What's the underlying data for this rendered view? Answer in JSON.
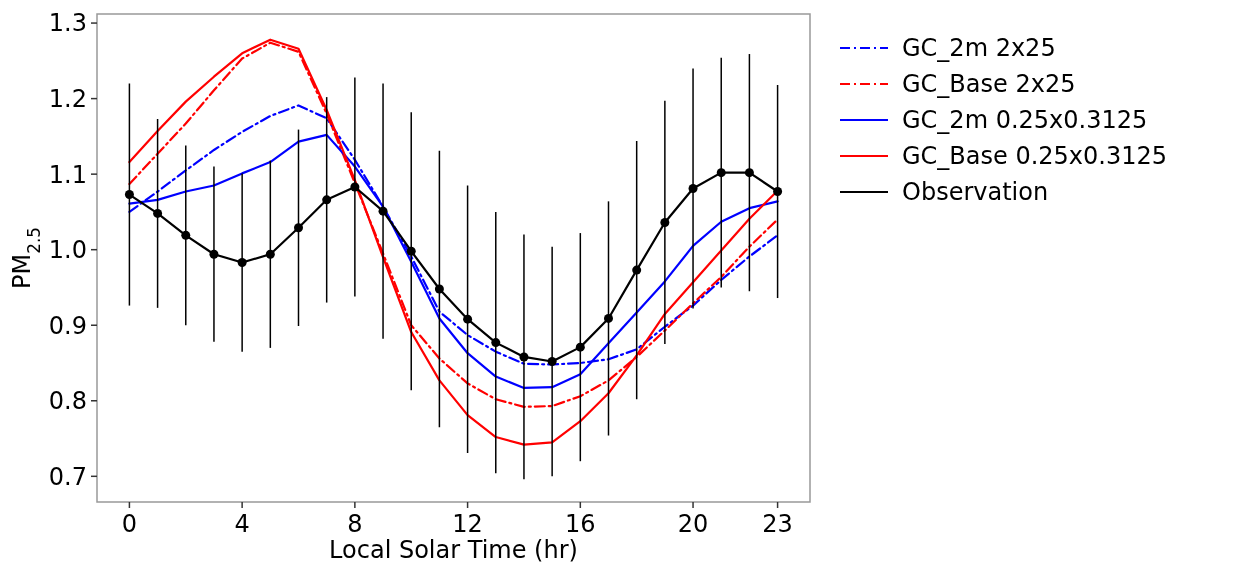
{
  "chart_data": {
    "type": "line",
    "xlabel": "Local Solar Time (hr)",
    "ylabel": "PM$_{2.5}$",
    "x": [
      0,
      1,
      2,
      3,
      4,
      5,
      6,
      7,
      8,
      9,
      10,
      11,
      12,
      13,
      14,
      15,
      16,
      17,
      18,
      19,
      20,
      21,
      22,
      23
    ],
    "xlim": [
      -1.15,
      24.15
    ],
    "xticks": [
      0,
      4,
      8,
      12,
      16,
      20,
      23
    ],
    "ylim": [
      0.666,
      1.312
    ],
    "yticks": [
      0.7,
      0.8,
      0.9,
      {
        "value": 1,
        "label": "1.0"
      },
      1.1,
      1.2,
      1.3
    ],
    "legend": "right",
    "grid": false,
    "series": [
      {
        "name": "GC_2m 2x25",
        "color": "#0000ff",
        "line_style": "dashdot",
        "marker": "none",
        "values": [
          1.05,
          1.077,
          1.105,
          1.132,
          1.156,
          1.177,
          1.191,
          1.174,
          1.119,
          1.057,
          0.991,
          0.918,
          0.887,
          0.865,
          0.849,
          0.848,
          0.85,
          0.855,
          0.868,
          0.898,
          0.926,
          0.96,
          0.991,
          1.019
        ]
      },
      {
        "name": "GC_Base 2x25",
        "color": "#ff0000",
        "line_style": "dashdot",
        "marker": "none",
        "values": [
          1.087,
          1.127,
          1.167,
          1.211,
          1.253,
          1.274,
          1.262,
          1.18,
          1.088,
          0.995,
          0.9,
          0.856,
          0.823,
          0.802,
          0.792,
          0.793,
          0.806,
          0.827,
          0.858,
          0.893,
          0.929,
          0.964,
          1.004,
          1.04
        ]
      },
      {
        "name": "GC_2m 0.25x0.3125",
        "color": "#0000ff",
        "line_style": "solid",
        "marker": "none",
        "values": [
          1.061,
          1.066,
          1.077,
          1.085,
          1.101,
          1.116,
          1.143,
          1.152,
          1.11,
          1.057,
          0.984,
          0.909,
          0.863,
          0.832,
          0.817,
          0.818,
          0.835,
          0.876,
          0.917,
          0.958,
          1.005,
          1.037,
          1.055,
          1.064
        ]
      },
      {
        "name": "GC_Base 0.25x0.3125",
        "color": "#ff0000",
        "line_style": "solid",
        "marker": "none",
        "values": [
          1.116,
          1.157,
          1.196,
          1.229,
          1.26,
          1.278,
          1.266,
          1.185,
          1.092,
          0.99,
          0.891,
          0.827,
          0.781,
          0.752,
          0.742,
          0.745,
          0.773,
          0.81,
          0.86,
          0.915,
          0.957,
          0.999,
          1.041,
          1.078
        ]
      },
      {
        "name": "Observation",
        "color": "#000000",
        "line_style": "solid",
        "marker": "circle",
        "values": [
          1.073,
          1.048,
          1.019,
          0.994,
          0.983,
          0.994,
          1.029,
          1.066,
          1.083,
          1.051,
          0.998,
          0.948,
          0.908,
          0.877,
          0.858,
          0.852,
          0.871,
          0.909,
          0.973,
          1.036,
          1.081,
          1.102,
          1.102,
          1.077
        ],
        "errors": [
          0.147,
          0.125,
          0.119,
          0.116,
          0.118,
          0.124,
          0.13,
          0.136,
          0.145,
          0.169,
          0.184,
          0.183,
          0.177,
          0.173,
          0.162,
          0.152,
          0.151,
          0.155,
          0.171,
          0.161,
          0.159,
          0.152,
          0.157,
          0.141
        ]
      }
    ]
  }
}
